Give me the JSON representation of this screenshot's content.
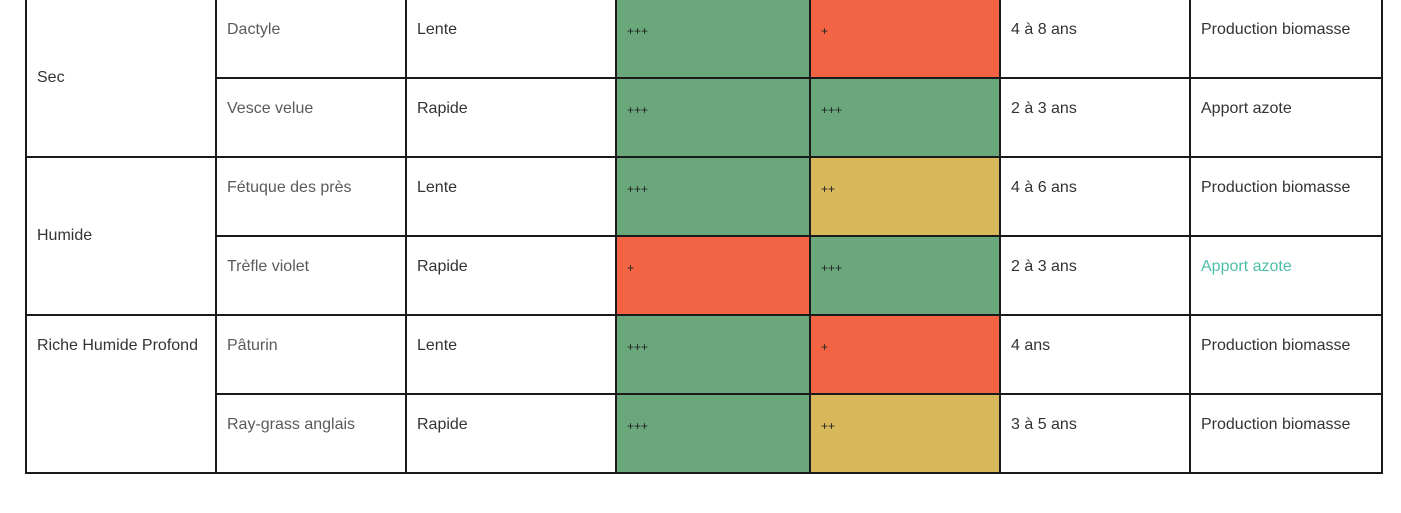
{
  "colors": {
    "green": "#6aa87c",
    "red": "#f26444",
    "yellow": "#d9b85b",
    "link": "#4dbfa8"
  },
  "groups": [
    {
      "soil": "Sec",
      "rows": [
        {
          "species": "Dactyle",
          "speed": "Lente",
          "col_a": "+++",
          "col_a_color": "green",
          "col_b": "+",
          "col_b_color": "red",
          "duration": "4 à 8 ans",
          "use": "Production biomasse"
        },
        {
          "species": "Vesce velue",
          "speed": "Rapide",
          "col_a": "+++",
          "col_a_color": "green",
          "col_b": "+++",
          "col_b_color": "green",
          "duration": "2 à 3 ans",
          "use": "Apport azote"
        }
      ]
    },
    {
      "soil": "Humide",
      "rows": [
        {
          "species": "Fétuque des près",
          "speed": "Lente",
          "col_a": "+++",
          "col_a_color": "green",
          "col_b": "++",
          "col_b_color": "yellow",
          "duration": "4 à 6 ans",
          "use": "Production biomasse"
        },
        {
          "species": "Trèfle violet",
          "speed": "Rapide",
          "col_a": "+",
          "col_a_color": "red",
          "col_b": "+++",
          "col_b_color": "green",
          "duration": "2 à 3 ans",
          "use": "Apport azote",
          "use_is_link": true
        }
      ]
    },
    {
      "soil": "Riche Humide Profond",
      "rows": [
        {
          "species": "Pâturin",
          "speed": "Lente",
          "col_a": "+++",
          "col_a_color": "green",
          "col_b": "+",
          "col_b_color": "red",
          "duration": "4 ans",
          "use": "Production biomasse"
        },
        {
          "species": "Ray-grass anglais",
          "speed": "Rapide",
          "col_a": "+++",
          "col_a_color": "green",
          "col_b": "++",
          "col_b_color": "yellow",
          "duration": "3 à 5 ans",
          "use": "Production biomasse"
        }
      ]
    }
  ]
}
